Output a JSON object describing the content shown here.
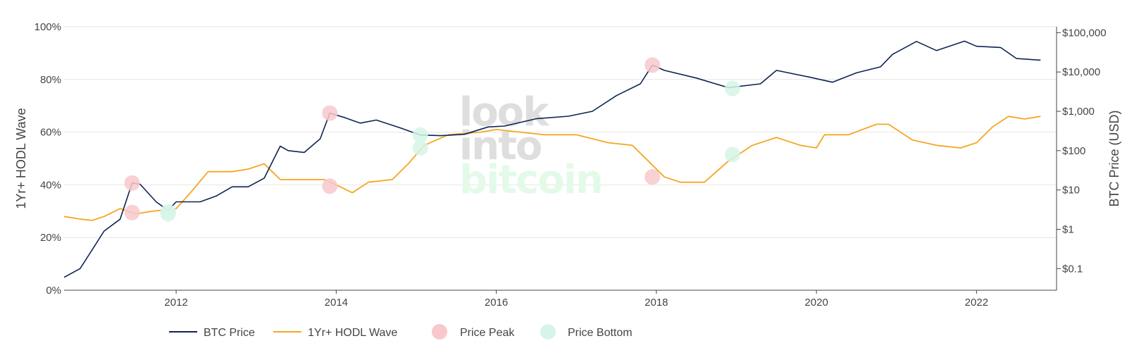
{
  "chart_data": {
    "type": "line",
    "x": {
      "range": [
        2010.6,
        2023.0
      ],
      "ticks": [
        "2012",
        "2014",
        "2016",
        "2018",
        "2020",
        "2022"
      ]
    },
    "y_left": {
      "label": "1Yr+ HODL Wave",
      "range": [
        0,
        100
      ],
      "ticks": [
        "0%",
        "20%",
        "40%",
        "60%",
        "80%",
        "100%"
      ]
    },
    "y_right": {
      "label": "BTC Price (USD)",
      "scale": "log",
      "ticks": [
        "$0.1",
        "$1",
        "$10",
        "$100",
        "$1,000",
        "$10,000",
        "$100,000"
      ]
    },
    "grid": true,
    "legend_position": "bottom",
    "watermark": [
      "look",
      "into",
      "bitcoin"
    ],
    "series": [
      {
        "name": "BTC Price",
        "axis": "right",
        "color": "#0d2452",
        "points": [
          [
            2010.6,
            0.06
          ],
          [
            2010.8,
            0.1
          ],
          [
            2010.95,
            0.3
          ],
          [
            2011.1,
            0.9
          ],
          [
            2011.3,
            1.8
          ],
          [
            2011.45,
            15
          ],
          [
            2011.55,
            14
          ],
          [
            2011.75,
            5
          ],
          [
            2011.9,
            3
          ],
          [
            2012.0,
            5
          ],
          [
            2012.3,
            5
          ],
          [
            2012.5,
            7
          ],
          [
            2012.7,
            12
          ],
          [
            2012.9,
            12
          ],
          [
            2013.1,
            20
          ],
          [
            2013.3,
            130
          ],
          [
            2013.4,
            100
          ],
          [
            2013.6,
            90
          ],
          [
            2013.8,
            200
          ],
          [
            2013.92,
            900
          ],
          [
            2014.1,
            700
          ],
          [
            2014.3,
            500
          ],
          [
            2014.5,
            600
          ],
          [
            2014.8,
            380
          ],
          [
            2015.05,
            250
          ],
          [
            2015.3,
            240
          ],
          [
            2015.6,
            260
          ],
          [
            2015.9,
            400
          ],
          [
            2016.1,
            420
          ],
          [
            2016.5,
            650
          ],
          [
            2016.9,
            750
          ],
          [
            2017.2,
            1000
          ],
          [
            2017.5,
            2500
          ],
          [
            2017.8,
            5000
          ],
          [
            2017.95,
            15000
          ],
          [
            2018.1,
            11000
          ],
          [
            2018.5,
            7000
          ],
          [
            2018.9,
            4000
          ],
          [
            2019.3,
            5000
          ],
          [
            2019.5,
            11000
          ],
          [
            2019.9,
            7500
          ],
          [
            2020.2,
            5500
          ],
          [
            2020.5,
            9500
          ],
          [
            2020.8,
            13500
          ],
          [
            2020.95,
            28000
          ],
          [
            2021.25,
            60000
          ],
          [
            2021.5,
            35000
          ],
          [
            2021.85,
            61000
          ],
          [
            2022.0,
            45000
          ],
          [
            2022.3,
            42000
          ],
          [
            2022.5,
            22000
          ],
          [
            2022.8,
            20000
          ]
        ]
      },
      {
        "name": "1Yr+ HODL Wave",
        "axis": "left",
        "color": "#f5a623",
        "points": [
          [
            2010.6,
            28
          ],
          [
            2010.8,
            27
          ],
          [
            2010.95,
            26.5
          ],
          [
            2011.1,
            28
          ],
          [
            2011.3,
            31
          ],
          [
            2011.5,
            29
          ],
          [
            2011.7,
            30
          ],
          [
            2012.0,
            31
          ],
          [
            2012.15,
            36
          ],
          [
            2012.4,
            45
          ],
          [
            2012.7,
            45
          ],
          [
            2012.9,
            46
          ],
          [
            2013.1,
            48
          ],
          [
            2013.3,
            42
          ],
          [
            2013.6,
            42
          ],
          [
            2013.85,
            42
          ],
          [
            2014.0,
            40
          ],
          [
            2014.2,
            37
          ],
          [
            2014.4,
            41
          ],
          [
            2014.7,
            42
          ],
          [
            2014.9,
            48
          ],
          [
            2015.1,
            55
          ],
          [
            2015.4,
            59
          ],
          [
            2015.8,
            60
          ],
          [
            2016.0,
            61
          ],
          [
            2016.3,
            60
          ],
          [
            2016.6,
            59
          ],
          [
            2017.0,
            59
          ],
          [
            2017.4,
            56
          ],
          [
            2017.7,
            55
          ],
          [
            2017.9,
            49
          ],
          [
            2018.1,
            43
          ],
          [
            2018.3,
            41
          ],
          [
            2018.6,
            41
          ],
          [
            2018.9,
            49
          ],
          [
            2019.2,
            55
          ],
          [
            2019.5,
            58
          ],
          [
            2019.8,
            55
          ],
          [
            2020.0,
            54
          ],
          [
            2020.1,
            59
          ],
          [
            2020.4,
            59
          ],
          [
            2020.75,
            63
          ],
          [
            2020.9,
            63
          ],
          [
            2021.2,
            57
          ],
          [
            2021.5,
            55
          ],
          [
            2021.8,
            54
          ],
          [
            2022.0,
            56
          ],
          [
            2022.2,
            62
          ],
          [
            2022.4,
            66
          ],
          [
            2022.6,
            65
          ],
          [
            2022.8,
            66
          ]
        ]
      }
    ],
    "markers": [
      {
        "name": "Price Peak",
        "color": "#f8c8cc",
        "points": [
          [
            2011.45,
            15
          ],
          [
            2013.92,
            900
          ],
          [
            2017.95,
            15000
          ],
          [
            2011.45,
            29.5
          ],
          [
            2013.92,
            39.5
          ],
          [
            2017.95,
            43
          ]
        ],
        "axes": [
          "right",
          "right",
          "right",
          "left",
          "left",
          "left"
        ]
      },
      {
        "name": "Price Bottom",
        "color": "#d6f5e8",
        "points": [
          [
            2011.9,
            2.8
          ],
          [
            2015.05,
            250
          ],
          [
            2018.95,
            3800
          ],
          [
            2011.9,
            29
          ],
          [
            2015.05,
            54
          ],
          [
            2018.95,
            51.5
          ]
        ],
        "axes": [
          "right",
          "right",
          "right",
          "left",
          "left",
          "left"
        ]
      }
    ]
  }
}
